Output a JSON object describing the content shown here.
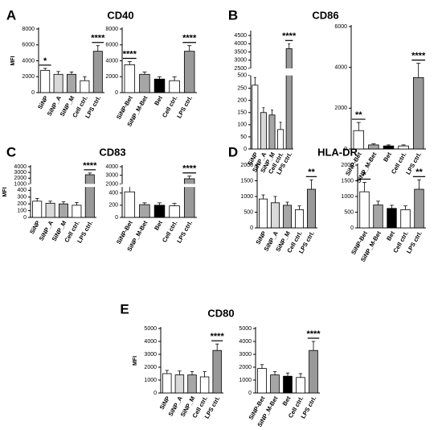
{
  "chart_data": [
    {
      "label": "A",
      "title": "CD40",
      "charts": [
        {
          "type": "bar",
          "ylabel": "MFI",
          "categories": [
            "SiNP",
            "SiNP_A",
            "SiNP_M",
            "Cell ctrl.",
            "LPS ctrl."
          ],
          "values": [
            2800,
            2300,
            2300,
            1500,
            5200
          ],
          "errors": [
            250,
            350,
            300,
            500,
            700
          ],
          "significance": [
            "*",
            null,
            null,
            null,
            "****"
          ],
          "colors": [
            "#ffffff",
            "#d9d9d9",
            "#a6a6a6",
            "#ffffff",
            "#999999"
          ],
          "ylim": [
            0,
            8000
          ],
          "yticks": [
            0,
            2000,
            4000,
            6000,
            8000
          ]
        },
        {
          "type": "bar",
          "categories": [
            "SiNP-Bet",
            "SiNP_M-Bet",
            "Bet",
            "Cell ctrl.",
            "LPS ctrl."
          ],
          "values": [
            3500,
            2300,
            1700,
            1500,
            5200
          ],
          "errors": [
            400,
            300,
            300,
            500,
            700
          ],
          "significance": [
            "****",
            null,
            null,
            null,
            "****"
          ],
          "colors": [
            "#ffffff",
            "#a6a6a6",
            "#000000",
            "#ffffff",
            "#999999"
          ],
          "ylim": [
            0,
            8000
          ],
          "yticks": [
            0,
            2000,
            4000,
            6000,
            8000
          ]
        }
      ]
    },
    {
      "label": "B",
      "title": "CD86",
      "charts": [
        {
          "type": "bar",
          "categories": [
            "SiNP",
            "SiNP_A",
            "SiNP_M",
            "Cell ctrl.",
            "LPS ctrl."
          ],
          "values": [
            310,
            150,
            140,
            80,
            3700
          ],
          "errors": [
            150,
            20,
            20,
            30,
            300
          ],
          "significance": [
            null,
            null,
            null,
            null,
            "****"
          ],
          "colors": [
            "#ffffff",
            "#d9d9d9",
            "#a6a6a6",
            "#ffffff",
            "#999999"
          ],
          "ysegments": [
            [
              0,
              250
            ],
            [
              250,
              500
            ],
            [
              2500,
              4700
            ]
          ],
          "yticks": [
            0,
            50,
            100,
            150,
            200,
            250,
            500,
            2500,
            3000,
            3500,
            4000,
            4500
          ]
        },
        {
          "type": "bar",
          "categories": [
            "SiNP-Bet",
            "SiNP_M-Bet",
            "Bet",
            "Cell ctrl.",
            "LPS ctrl."
          ],
          "values": [
            900,
            200,
            150,
            150,
            3500
          ],
          "errors": [
            400,
            50,
            50,
            50,
            700
          ],
          "significance": [
            "**",
            null,
            null,
            null,
            "****"
          ],
          "colors": [
            "#ffffff",
            "#a6a6a6",
            "#000000",
            "#ffffff",
            "#999999"
          ],
          "ylim": [
            0,
            6000
          ],
          "yticks": [
            0,
            2000,
            4000,
            6000
          ]
        }
      ]
    },
    {
      "label": "C",
      "title": "CD83",
      "charts": [
        {
          "type": "bar",
          "ylabel": "MFI",
          "categories": [
            "SiNP",
            "SiNP_A",
            "SiNP_M",
            "Cell ctrl.",
            "LPS ctrl."
          ],
          "values": [
            240,
            210,
            200,
            180,
            2600
          ],
          "errors": [
            40,
            30,
            30,
            40,
            300
          ],
          "significance": [
            null,
            null,
            null,
            null,
            "****"
          ],
          "colors": [
            "#ffffff",
            "#d9d9d9",
            "#a6a6a6",
            "#ffffff",
            "#999999"
          ],
          "ysegments": [
            [
              0,
              450
            ],
            [
              1000,
              4000
            ]
          ],
          "yticks": [
            0,
            100,
            200,
            300,
            400,
            1000,
            2000,
            3000,
            4000
          ]
        },
        {
          "type": "bar",
          "categories": [
            "SiNP-Bet",
            "SiNP_M-Bet",
            "Bet",
            "Cell ctrl.",
            "LPS ctrl."
          ],
          "values": [
            420,
            210,
            200,
            190,
            2600
          ],
          "errors": [
            100,
            30,
            40,
            40,
            300
          ],
          "significance": [
            null,
            null,
            null,
            null,
            "****"
          ],
          "colors": [
            "#ffffff",
            "#a6a6a6",
            "#000000",
            "#ffffff",
            "#999999"
          ],
          "ysegments": [
            [
              0,
              500
            ],
            [
              2000,
              4000
            ]
          ],
          "yticks": [
            0,
            200,
            400,
            2000,
            3000,
            4000
          ]
        }
      ]
    },
    {
      "label": "D",
      "title": "HLA-DR",
      "charts": [
        {
          "type": "bar",
          "categories": [
            "SiNP",
            "SiNP_A",
            "SiNP_M",
            "Cell ctrl.",
            "LPS ctrl."
          ],
          "values": [
            920,
            800,
            720,
            580,
            1230
          ],
          "errors": [
            130,
            200,
            100,
            120,
            300
          ],
          "significance": [
            null,
            null,
            null,
            null,
            "**"
          ],
          "colors": [
            "#ffffff",
            "#d9d9d9",
            "#a6a6a6",
            "#ffffff",
            "#999999"
          ],
          "ylim": [
            0,
            2000
          ],
          "yticks": [
            0,
            500,
            1000,
            1500,
            2000
          ]
        },
        {
          "type": "bar",
          "categories": [
            "SiNP-Bet",
            "SiNP_M-Bet",
            "Bet",
            "Cell ctrl.",
            "LPS ctrl."
          ],
          "values": [
            1150,
            730,
            620,
            580,
            1230
          ],
          "errors": [
            300,
            120,
            100,
            120,
            300
          ],
          "significance": [
            "*",
            null,
            null,
            null,
            "**"
          ],
          "colors": [
            "#ffffff",
            "#a6a6a6",
            "#000000",
            "#ffffff",
            "#999999"
          ],
          "ylim": [
            0,
            2000
          ],
          "yticks": [
            0,
            500,
            1000,
            1500,
            2000
          ]
        }
      ]
    },
    {
      "label": "E",
      "title": "CD80",
      "charts": [
        {
          "type": "bar",
          "ylabel": "MFI",
          "categories": [
            "SiNP",
            "SiNP_A",
            "SiNP_M",
            "Cell ctrl.",
            "LPS ctrl."
          ],
          "values": [
            1500,
            1400,
            1400,
            1250,
            3300
          ],
          "errors": [
            250,
            300,
            250,
            400,
            500
          ],
          "significance": [
            null,
            null,
            null,
            null,
            "****"
          ],
          "colors": [
            "#ffffff",
            "#d9d9d9",
            "#a6a6a6",
            "#ffffff",
            "#999999"
          ],
          "ylim": [
            0,
            5000
          ],
          "yticks": [
            0,
            1000,
            2000,
            3000,
            4000,
            5000
          ]
        },
        {
          "type": "bar",
          "categories": [
            "SiNP-Bet",
            "SiNP_M-Bet",
            "Bet",
            "Cell ctrl.",
            "LPS ctrl."
          ],
          "values": [
            1900,
            1400,
            1300,
            1200,
            3300
          ],
          "errors": [
            300,
            250,
            250,
            300,
            700
          ],
          "significance": [
            null,
            null,
            null,
            null,
            "****"
          ],
          "colors": [
            "#ffffff",
            "#a6a6a6",
            "#000000",
            "#ffffff",
            "#999999"
          ],
          "ylim": [
            0,
            5000
          ],
          "yticks": [
            0,
            1000,
            2000,
            3000,
            4000,
            5000
          ]
        }
      ]
    }
  ]
}
